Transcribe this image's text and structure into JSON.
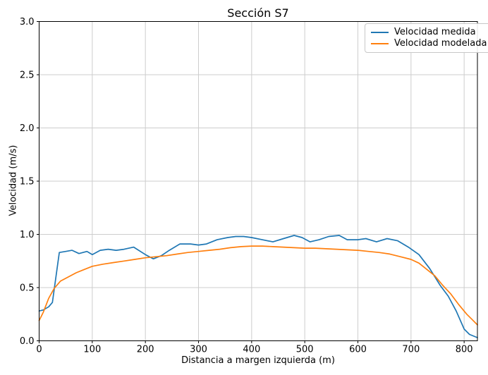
{
  "chart_data": {
    "type": "line",
    "title": "Sección S7",
    "xlabel": "Distancia a margen izquierda (m)",
    "ylabel": "Velocidad (m/s)",
    "xlim": [
      0,
      825
    ],
    "ylim": [
      0,
      3
    ],
    "grid": true,
    "grid_color": "#cdcdcd",
    "axis_color": "#000000",
    "legend_position": "upper right",
    "x_tick_values": [
      0,
      100,
      200,
      300,
      400,
      500,
      600,
      700,
      800
    ],
    "x_tick_labels": [
      "0",
      "100",
      "200",
      "300",
      "400",
      "500",
      "600",
      "700",
      "800"
    ],
    "y_tick_values": [
      0,
      0.5,
      1.0,
      1.5,
      2.0,
      2.5,
      3.0
    ],
    "y_tick_labels": [
      "0.0",
      "0.5",
      "1.0",
      "1.5",
      "2.0",
      "2.5",
      "3.0"
    ],
    "series": [
      {
        "name": "Velocidad medida",
        "color": "#1f77b4",
        "points": [
          [
            0,
            0.28
          ],
          [
            8,
            0.29
          ],
          [
            18,
            0.32
          ],
          [
            25,
            0.36
          ],
          [
            38,
            0.83
          ],
          [
            50,
            0.84
          ],
          [
            62,
            0.85
          ],
          [
            75,
            0.82
          ],
          [
            90,
            0.84
          ],
          [
            100,
            0.81
          ],
          [
            115,
            0.85
          ],
          [
            130,
            0.86
          ],
          [
            145,
            0.85
          ],
          [
            160,
            0.86
          ],
          [
            178,
            0.88
          ],
          [
            200,
            0.81
          ],
          [
            215,
            0.77
          ],
          [
            230,
            0.8
          ],
          [
            245,
            0.85
          ],
          [
            265,
            0.91
          ],
          [
            285,
            0.91
          ],
          [
            300,
            0.9
          ],
          [
            315,
            0.91
          ],
          [
            335,
            0.95
          ],
          [
            355,
            0.97
          ],
          [
            370,
            0.98
          ],
          [
            385,
            0.98
          ],
          [
            400,
            0.97
          ],
          [
            420,
            0.95
          ],
          [
            440,
            0.93
          ],
          [
            460,
            0.96
          ],
          [
            480,
            0.99
          ],
          [
            495,
            0.97
          ],
          [
            510,
            0.93
          ],
          [
            527,
            0.95
          ],
          [
            545,
            0.98
          ],
          [
            565,
            0.99
          ],
          [
            580,
            0.95
          ],
          [
            600,
            0.95
          ],
          [
            615,
            0.96
          ],
          [
            635,
            0.93
          ],
          [
            655,
            0.96
          ],
          [
            675,
            0.94
          ],
          [
            695,
            0.88
          ],
          [
            715,
            0.81
          ],
          [
            735,
            0.68
          ],
          [
            755,
            0.52
          ],
          [
            770,
            0.42
          ],
          [
            785,
            0.28
          ],
          [
            800,
            0.11
          ],
          [
            810,
            0.06
          ],
          [
            825,
            0.03
          ]
        ]
      },
      {
        "name": "Velocidad modelada",
        "color": "#ff7f0e",
        "points": [
          [
            0,
            0.19
          ],
          [
            8,
            0.27
          ],
          [
            18,
            0.4
          ],
          [
            28,
            0.49
          ],
          [
            40,
            0.56
          ],
          [
            55,
            0.6
          ],
          [
            70,
            0.64
          ],
          [
            85,
            0.67
          ],
          [
            100,
            0.7
          ],
          [
            120,
            0.72
          ],
          [
            140,
            0.735
          ],
          [
            160,
            0.75
          ],
          [
            180,
            0.765
          ],
          [
            200,
            0.78
          ],
          [
            220,
            0.79
          ],
          [
            240,
            0.8
          ],
          [
            260,
            0.815
          ],
          [
            280,
            0.83
          ],
          [
            300,
            0.84
          ],
          [
            320,
            0.85
          ],
          [
            340,
            0.86
          ],
          [
            360,
            0.875
          ],
          [
            380,
            0.885
          ],
          [
            400,
            0.89
          ],
          [
            420,
            0.89
          ],
          [
            440,
            0.885
          ],
          [
            460,
            0.88
          ],
          [
            480,
            0.875
          ],
          [
            500,
            0.87
          ],
          [
            520,
            0.87
          ],
          [
            540,
            0.865
          ],
          [
            560,
            0.86
          ],
          [
            580,
            0.855
          ],
          [
            600,
            0.85
          ],
          [
            620,
            0.84
          ],
          [
            640,
            0.83
          ],
          [
            660,
            0.815
          ],
          [
            680,
            0.79
          ],
          [
            700,
            0.765
          ],
          [
            715,
            0.73
          ],
          [
            730,
            0.67
          ],
          [
            745,
            0.61
          ],
          [
            760,
            0.52
          ],
          [
            775,
            0.44
          ],
          [
            790,
            0.34
          ],
          [
            805,
            0.25
          ],
          [
            815,
            0.2
          ],
          [
            825,
            0.15
          ]
        ]
      }
    ]
  }
}
